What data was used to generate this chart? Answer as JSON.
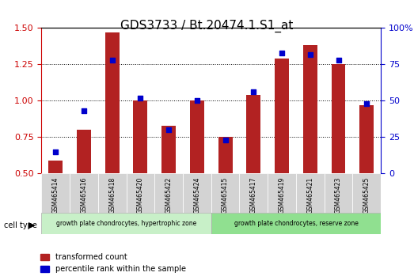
{
  "title": "GDS3733 / Bt.20474.1.S1_at",
  "categories": [
    "GSM465414",
    "GSM465416",
    "GSM465418",
    "GSM465420",
    "GSM465422",
    "GSM465424",
    "GSM465415",
    "GSM465417",
    "GSM465419",
    "GSM465421",
    "GSM465423",
    "GSM465425"
  ],
  "red_values": [
    0.59,
    0.8,
    1.47,
    1.0,
    0.83,
    1.0,
    0.75,
    1.04,
    1.29,
    1.38,
    1.25,
    0.97
  ],
  "blue_values": [
    15,
    43,
    78,
    52,
    30,
    50,
    23,
    56,
    83,
    82,
    78,
    48
  ],
  "group1_label": "growth plate chondrocytes, hypertrophic zone",
  "group2_label": "growth plate chondrocytes, reserve zone",
  "group1_count": 6,
  "group2_count": 6,
  "ylim_left": [
    0.5,
    1.5
  ],
  "ylim_right": [
    0,
    100
  ],
  "yticks_left": [
    0.5,
    0.75,
    1.0,
    1.25,
    1.5
  ],
  "yticks_right": [
    0,
    25,
    50,
    75,
    100
  ],
  "bar_color": "#b22222",
  "dot_color": "#0000cc",
  "group1_bg": "#c8f0c8",
  "group2_bg": "#90e090",
  "cell_type_label": "cell type",
  "legend_red": "transformed count",
  "legend_blue": "percentile rank within the sample",
  "xlabel_color": "#cc0000",
  "right_axis_color": "#0000cc",
  "bar_width": 0.5,
  "baseline": 0.5
}
